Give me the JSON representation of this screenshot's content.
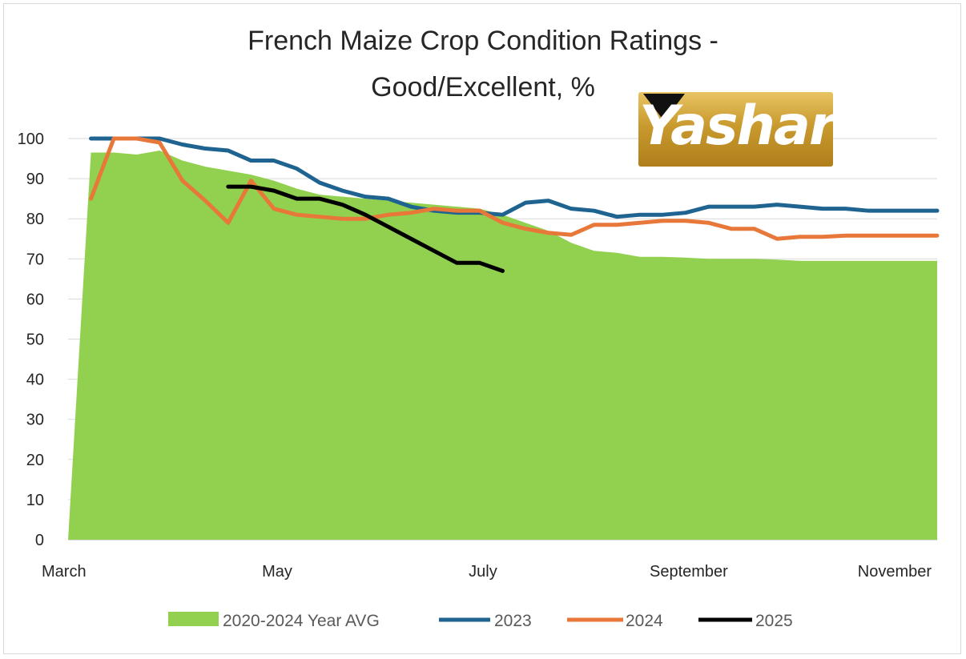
{
  "chart_data": {
    "type": "area",
    "title_line1": "French Maize Crop Condition Ratings -",
    "title_line2": "Good/Excellent, %",
    "ylim": [
      0,
      100
    ],
    "yticks": [
      0,
      10,
      20,
      30,
      40,
      50,
      60,
      70,
      80,
      90,
      100
    ],
    "xlim": [
      0,
      38
    ],
    "x_tick_labels": [
      {
        "x": 0,
        "label": "March"
      },
      {
        "x": 9,
        "label": "May"
      },
      {
        "x": 18,
        "label": "July"
      },
      {
        "x": 27,
        "label": "September"
      },
      {
        "x": 36,
        "label": "November"
      }
    ],
    "grid": true,
    "legend_placement": "bottom",
    "series": [
      {
        "name": "2020-2024 Year AVG",
        "kind": "area",
        "color": "#92d050",
        "points": [
          [
            0,
            0
          ],
          [
            1,
            96.5
          ],
          [
            2,
            96.5
          ],
          [
            3,
            96
          ],
          [
            4,
            97
          ],
          [
            5,
            94.5
          ],
          [
            6,
            93
          ],
          [
            7,
            92
          ],
          [
            8,
            91
          ],
          [
            9,
            89.5
          ],
          [
            10,
            87.5
          ],
          [
            11,
            86
          ],
          [
            12,
            85.5
          ],
          [
            13,
            85
          ],
          [
            14,
            84.5
          ],
          [
            15,
            84
          ],
          [
            16,
            83.5
          ],
          [
            17,
            83
          ],
          [
            18,
            82.5
          ],
          [
            19,
            81
          ],
          [
            20,
            79
          ],
          [
            21,
            77
          ],
          [
            22,
            74
          ],
          [
            23,
            72
          ],
          [
            24,
            71.5
          ],
          [
            25,
            70.5
          ],
          [
            26,
            70.5
          ],
          [
            27,
            70.3
          ],
          [
            28,
            70
          ],
          [
            29,
            70
          ],
          [
            30,
            70
          ],
          [
            31,
            69.8
          ],
          [
            32,
            69.5
          ],
          [
            33,
            69.5
          ],
          [
            34,
            69.5
          ],
          [
            35,
            69.5
          ],
          [
            36,
            69.5
          ],
          [
            37,
            69.5
          ],
          [
            38,
            69.5
          ]
        ]
      },
      {
        "name": "2023",
        "kind": "line",
        "color": "#1f6391",
        "points": [
          [
            1,
            100
          ],
          [
            2,
            100
          ],
          [
            3,
            100
          ],
          [
            4,
            100
          ],
          [
            5,
            98.5
          ],
          [
            6,
            97.5
          ],
          [
            7,
            97
          ],
          [
            8,
            94.5
          ],
          [
            9,
            94.5
          ],
          [
            10,
            92.5
          ],
          [
            11,
            89
          ],
          [
            12,
            87
          ],
          [
            13,
            85.5
          ],
          [
            14,
            85
          ],
          [
            15,
            83
          ],
          [
            16,
            82
          ],
          [
            17,
            81.5
          ],
          [
            18,
            81.5
          ],
          [
            19,
            81
          ],
          [
            20,
            84
          ],
          [
            21,
            84.5
          ],
          [
            22,
            82.5
          ],
          [
            23,
            82
          ],
          [
            24,
            80.5
          ],
          [
            25,
            81
          ],
          [
            26,
            81
          ],
          [
            27,
            81.5
          ],
          [
            28,
            83
          ],
          [
            29,
            83
          ],
          [
            30,
            83
          ],
          [
            31,
            83.5
          ],
          [
            32,
            83
          ],
          [
            33,
            82.5
          ],
          [
            34,
            82.5
          ],
          [
            35,
            82
          ],
          [
            36,
            82
          ],
          [
            37,
            82
          ],
          [
            38,
            82
          ]
        ]
      },
      {
        "name": "2024",
        "kind": "line",
        "color": "#e8773a",
        "points": [
          [
            1,
            85
          ],
          [
            2,
            100
          ],
          [
            3,
            100
          ],
          [
            4,
            99
          ],
          [
            5,
            89.5
          ],
          [
            6,
            84.5
          ],
          [
            7,
            79
          ],
          [
            8,
            89.5
          ],
          [
            9,
            82.5
          ],
          [
            10,
            81
          ],
          [
            11,
            80.5
          ],
          [
            12,
            80
          ],
          [
            13,
            80
          ],
          [
            14,
            81
          ],
          [
            15,
            81.5
          ],
          [
            16,
            82.5
          ],
          [
            17,
            82
          ],
          [
            18,
            82
          ],
          [
            19,
            79
          ],
          [
            20,
            77.5
          ],
          [
            21,
            76.5
          ],
          [
            22,
            76
          ],
          [
            23,
            78.5
          ],
          [
            24,
            78.5
          ],
          [
            25,
            79
          ],
          [
            26,
            79.5
          ],
          [
            27,
            79.5
          ],
          [
            28,
            79
          ],
          [
            29,
            77.5
          ],
          [
            30,
            77.5
          ],
          [
            31,
            75
          ],
          [
            32,
            75.5
          ],
          [
            33,
            75.5
          ],
          [
            34,
            75.8
          ],
          [
            35,
            75.8
          ],
          [
            36,
            75.8
          ],
          [
            37,
            75.8
          ],
          [
            38,
            75.8
          ]
        ]
      },
      {
        "name": "2025",
        "kind": "line",
        "color": "#000000",
        "points": [
          [
            7,
            88
          ],
          [
            8,
            88
          ],
          [
            9,
            87
          ],
          [
            10,
            85
          ],
          [
            11,
            85
          ],
          [
            12,
            83.5
          ],
          [
            13,
            81
          ],
          [
            14,
            78
          ],
          [
            15,
            75
          ],
          [
            16,
            72
          ],
          [
            17,
            69
          ],
          [
            18,
            69
          ],
          [
            19,
            67
          ]
        ]
      }
    ]
  },
  "watermark": {
    "text": "Yashar",
    "color": "#c99a2e"
  }
}
